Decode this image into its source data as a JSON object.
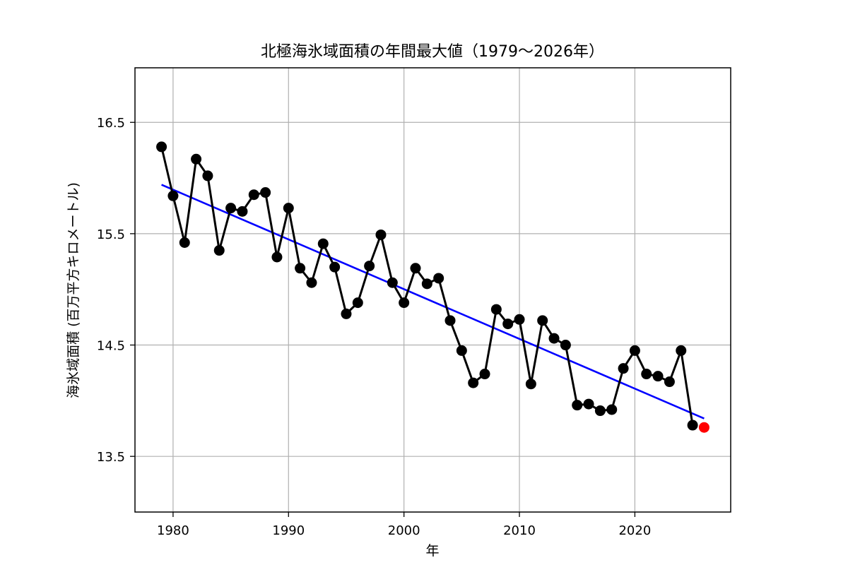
{
  "chart_data": {
    "type": "line",
    "title": "北極海氷域面積の年間最大値（1979〜2026年）",
    "xlabel": "年",
    "ylabel": "海氷域面積 (百万平方キロメートル)",
    "xlim": [
      1976.7,
      2028.3
    ],
    "ylim": [
      13.0,
      16.99
    ],
    "xticks": [
      1980,
      1990,
      2000,
      2010,
      2020
    ],
    "yticks": [
      13.5,
      14.5,
      15.5,
      16.5
    ],
    "grid": true,
    "series": [
      {
        "kind": "observed",
        "color": "#000000",
        "x": [
          1979,
          1980,
          1981,
          1982,
          1983,
          1984,
          1985,
          1986,
          1987,
          1988,
          1989,
          1990,
          1991,
          1992,
          1993,
          1994,
          1995,
          1996,
          1997,
          1998,
          1999,
          2000,
          2001,
          2002,
          2003,
          2004,
          2005,
          2006,
          2007,
          2008,
          2009,
          2010,
          2011,
          2012,
          2013,
          2014,
          2015,
          2016,
          2017,
          2018,
          2019,
          2020,
          2021,
          2022,
          2023,
          2024,
          2025
        ],
        "values": [
          16.28,
          15.84,
          15.42,
          16.17,
          16.02,
          15.35,
          15.73,
          15.7,
          15.85,
          15.87,
          15.29,
          15.73,
          15.19,
          15.06,
          15.41,
          15.2,
          14.78,
          14.88,
          15.21,
          15.49,
          15.06,
          14.88,
          15.19,
          15.05,
          15.1,
          14.72,
          14.45,
          14.16,
          14.24,
          14.82,
          14.69,
          14.73,
          14.15,
          14.72,
          14.56,
          14.5,
          13.96,
          13.97,
          13.91,
          13.92,
          14.29,
          14.45,
          14.24,
          14.22,
          14.17,
          14.45,
          13.78
        ]
      },
      {
        "kind": "latest",
        "color": "#ff0000",
        "x": [
          2026
        ],
        "values": [
          13.76
        ]
      },
      {
        "kind": "trend",
        "color": "#0000ff",
        "x": [
          1979,
          2026
        ],
        "values": [
          15.94,
          13.84
        ]
      }
    ]
  }
}
